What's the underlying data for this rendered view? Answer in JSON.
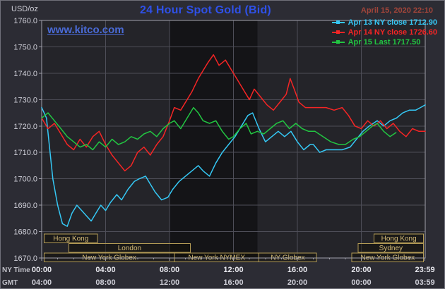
{
  "header": {
    "units_label": "USD/oz",
    "title": "24 Hour Spot Gold (Bid)",
    "datetime": "April 15, 2020 22:10",
    "watermark": "www.kitco.com"
  },
  "legend": {
    "items": [
      {
        "label": "Apr 13 NY close 1712.90",
        "color": "#35c8f5"
      },
      {
        "label": "Apr 14 NY close 1726.60",
        "color": "#f52525"
      },
      {
        "label": "Apr 15 Last 1717.50",
        "color": "#22c542"
      }
    ]
  },
  "axes": {
    "x_rows": [
      {
        "name": "NY Time",
        "labels": [
          "00:00",
          "04:00",
          "08:00",
          "12:00",
          "16:00",
          "20:00",
          "23:59"
        ]
      },
      {
        "name": "GMT",
        "labels": [
          "04:00",
          "08:00",
          "12:00",
          "16:00",
          "20:00",
          "00:00",
          "03:59"
        ]
      }
    ]
  },
  "sessions": [
    {
      "label": "Hong Kong",
      "row": 0,
      "start": 0.15,
      "end": 3.5
    },
    {
      "label": "Hong Kong",
      "row": 0,
      "start": 20.8,
      "end": 23.9
    },
    {
      "label": "London",
      "row": 1,
      "start": 1.7,
      "end": 9.3
    },
    {
      "label": "Sydney",
      "row": 1,
      "start": 19.8,
      "end": 23.9
    },
    {
      "label": "New York Globex",
      "row": 2,
      "start": 0.15,
      "end": 8.3
    },
    {
      "label": "New York NYMEX",
      "row": 2,
      "start": 8.3,
      "end": 13.6
    },
    {
      "label": "NY Globex",
      "row": 2,
      "start": 13.6,
      "end": 17.2
    },
    {
      "label": "New York Globex",
      "row": 2,
      "start": 19.4,
      "end": 23.9
    }
  ],
  "colors": {
    "page_bg": "#2c2c34",
    "plot_bg": "#242429",
    "plot_band": "#141417",
    "grid": "#4e4e58",
    "frame": "#a0a0aa",
    "axis_text": "#cfcfd8",
    "axis_text_strong": "#e8e8ee",
    "axis_text_dim": "#c0c0c8",
    "title": "#2f51e8",
    "datetime": "#a2453a",
    "watermark": "#4a6bd8",
    "session_border": "#b29a55",
    "session_fill": "rgba(15,13,5,0.45)",
    "session_text": "#d6bd78"
  },
  "chart_data": {
    "type": "line",
    "title": "24 Hour Spot Gold (Bid)",
    "xlabel": "NY Time",
    "ylabel": "USD/oz",
    "xlim": [
      0,
      24
    ],
    "ylim": [
      1670,
      1760
    ],
    "y_tick_step": 10,
    "x_major_hours": [
      0,
      4,
      8,
      12,
      16,
      20,
      23.983
    ],
    "grid": true,
    "legend_position": "top-right",
    "shaded_x_range": [
      8.0,
      13.5
    ],
    "series": [
      {
        "name": "Apr 13",
        "close_label": "NY close 1712.90",
        "close_value": 1712.9,
        "color": "#35c8f5",
        "x": [
          0,
          0.3,
          0.7,
          1.0,
          1.3,
          1.6,
          1.9,
          2.2,
          2.5,
          2.8,
          3.1,
          3.4,
          3.7,
          4.0,
          4.3,
          4.7,
          5.0,
          5.4,
          5.8,
          6.1,
          6.5,
          6.8,
          7.1,
          7.5,
          7.9,
          8.2,
          8.6,
          9.0,
          9.4,
          9.8,
          10.1,
          10.5,
          10.9,
          11.3,
          11.7,
          12.1,
          12.5,
          12.9,
          13.2,
          13.6,
          14.0,
          14.4,
          14.8,
          15.2,
          15.6,
          16.0,
          16.4,
          16.8,
          17.0,
          17.4,
          17.8,
          18.3,
          18.8,
          19.3,
          19.7,
          20.1,
          20.5,
          21.0,
          21.4,
          21.8,
          22.2,
          22.6,
          23.0,
          23.4,
          23.7,
          24.0
        ],
        "y": [
          1727,
          1723,
          1700,
          1690,
          1683,
          1682,
          1687,
          1690,
          1688,
          1686,
          1684,
          1687,
          1690,
          1688,
          1691,
          1694,
          1692,
          1696,
          1699,
          1700,
          1701,
          1698,
          1695,
          1692,
          1693,
          1696,
          1699,
          1701,
          1703,
          1705,
          1703,
          1701,
          1706,
          1710,
          1713,
          1716,
          1720,
          1724,
          1725,
          1719,
          1714,
          1716,
          1718,
          1716,
          1718,
          1714,
          1711,
          1713,
          1713,
          1710,
          1711,
          1711,
          1711,
          1712,
          1715,
          1718,
          1720,
          1722,
          1720,
          1722,
          1723,
          1725,
          1726,
          1726,
          1727,
          1728
        ]
      },
      {
        "name": "Apr 14",
        "close_label": "NY close 1726.60",
        "close_value": 1726.6,
        "color": "#f52525",
        "x": [
          0,
          0.4,
          0.8,
          1.2,
          1.6,
          2.0,
          2.4,
          2.8,
          3.2,
          3.6,
          4.0,
          4.4,
          4.8,
          5.2,
          5.6,
          6.0,
          6.4,
          6.8,
          7.2,
          7.6,
          8.0,
          8.3,
          8.7,
          9.0,
          9.4,
          9.8,
          10.1,
          10.4,
          10.75,
          11.1,
          11.5,
          11.9,
          12.3,
          12.7,
          13.0,
          13.3,
          13.7,
          14.1,
          14.5,
          14.9,
          15.3,
          15.55,
          15.8,
          16.1,
          16.5,
          16.9,
          17.3,
          17.8,
          18.3,
          18.8,
          19.2,
          19.6,
          20.0,
          20.4,
          20.8,
          21.2,
          21.6,
          22.0,
          22.4,
          22.8,
          23.2,
          23.6,
          24.0
        ],
        "y": [
          1723,
          1719,
          1721,
          1717,
          1713,
          1711,
          1715,
          1712,
          1716,
          1718,
          1713,
          1709,
          1706,
          1703,
          1705,
          1710,
          1712,
          1709,
          1713,
          1716,
          1722,
          1727,
          1726,
          1729,
          1733,
          1738,
          1741,
          1744,
          1747,
          1743,
          1745,
          1741,
          1737,
          1733,
          1730,
          1734,
          1731,
          1728,
          1726,
          1729,
          1732,
          1738,
          1734,
          1729,
          1727,
          1727,
          1727,
          1727,
          1726,
          1727,
          1724,
          1720,
          1719,
          1722,
          1720,
          1722,
          1719,
          1721,
          1718,
          1716,
          1719,
          1718,
          1718
        ]
      },
      {
        "name": "Apr 15",
        "close_label": "Last 1717.50",
        "close_value": 1717.5,
        "color": "#22c542",
        "x": [
          0,
          0.4,
          0.8,
          1.2,
          1.6,
          2.0,
          2.4,
          2.8,
          3.2,
          3.6,
          4.0,
          4.4,
          4.8,
          5.2,
          5.6,
          6.0,
          6.4,
          6.8,
          7.2,
          7.6,
          8.0,
          8.3,
          8.7,
          9.1,
          9.5,
          9.8,
          10.1,
          10.5,
          10.9,
          11.3,
          11.7,
          12.0,
          12.4,
          12.8,
          13.1,
          13.5,
          13.9,
          14.3,
          14.7,
          15.1,
          15.5,
          15.9,
          16.3,
          16.7,
          17.1,
          17.6,
          18.1,
          18.6,
          19.0,
          19.5,
          19.9,
          20.3,
          20.7,
          21.0,
          21.4,
          21.8,
          22.17
        ],
        "y": [
          1723,
          1725,
          1722,
          1719,
          1716,
          1714,
          1712,
          1713,
          1711,
          1714,
          1712,
          1715,
          1713,
          1714,
          1716,
          1715,
          1717,
          1718,
          1716,
          1719,
          1721,
          1722,
          1719,
          1723,
          1727,
          1725,
          1722,
          1721,
          1722,
          1718,
          1715,
          1716,
          1719,
          1721,
          1717,
          1718,
          1717,
          1719,
          1721,
          1722,
          1719,
          1721,
          1719,
          1718,
          1718,
          1716,
          1714,
          1713,
          1713,
          1715,
          1716,
          1718,
          1720,
          1721,
          1718,
          1716,
          1717.5
        ]
      }
    ]
  }
}
